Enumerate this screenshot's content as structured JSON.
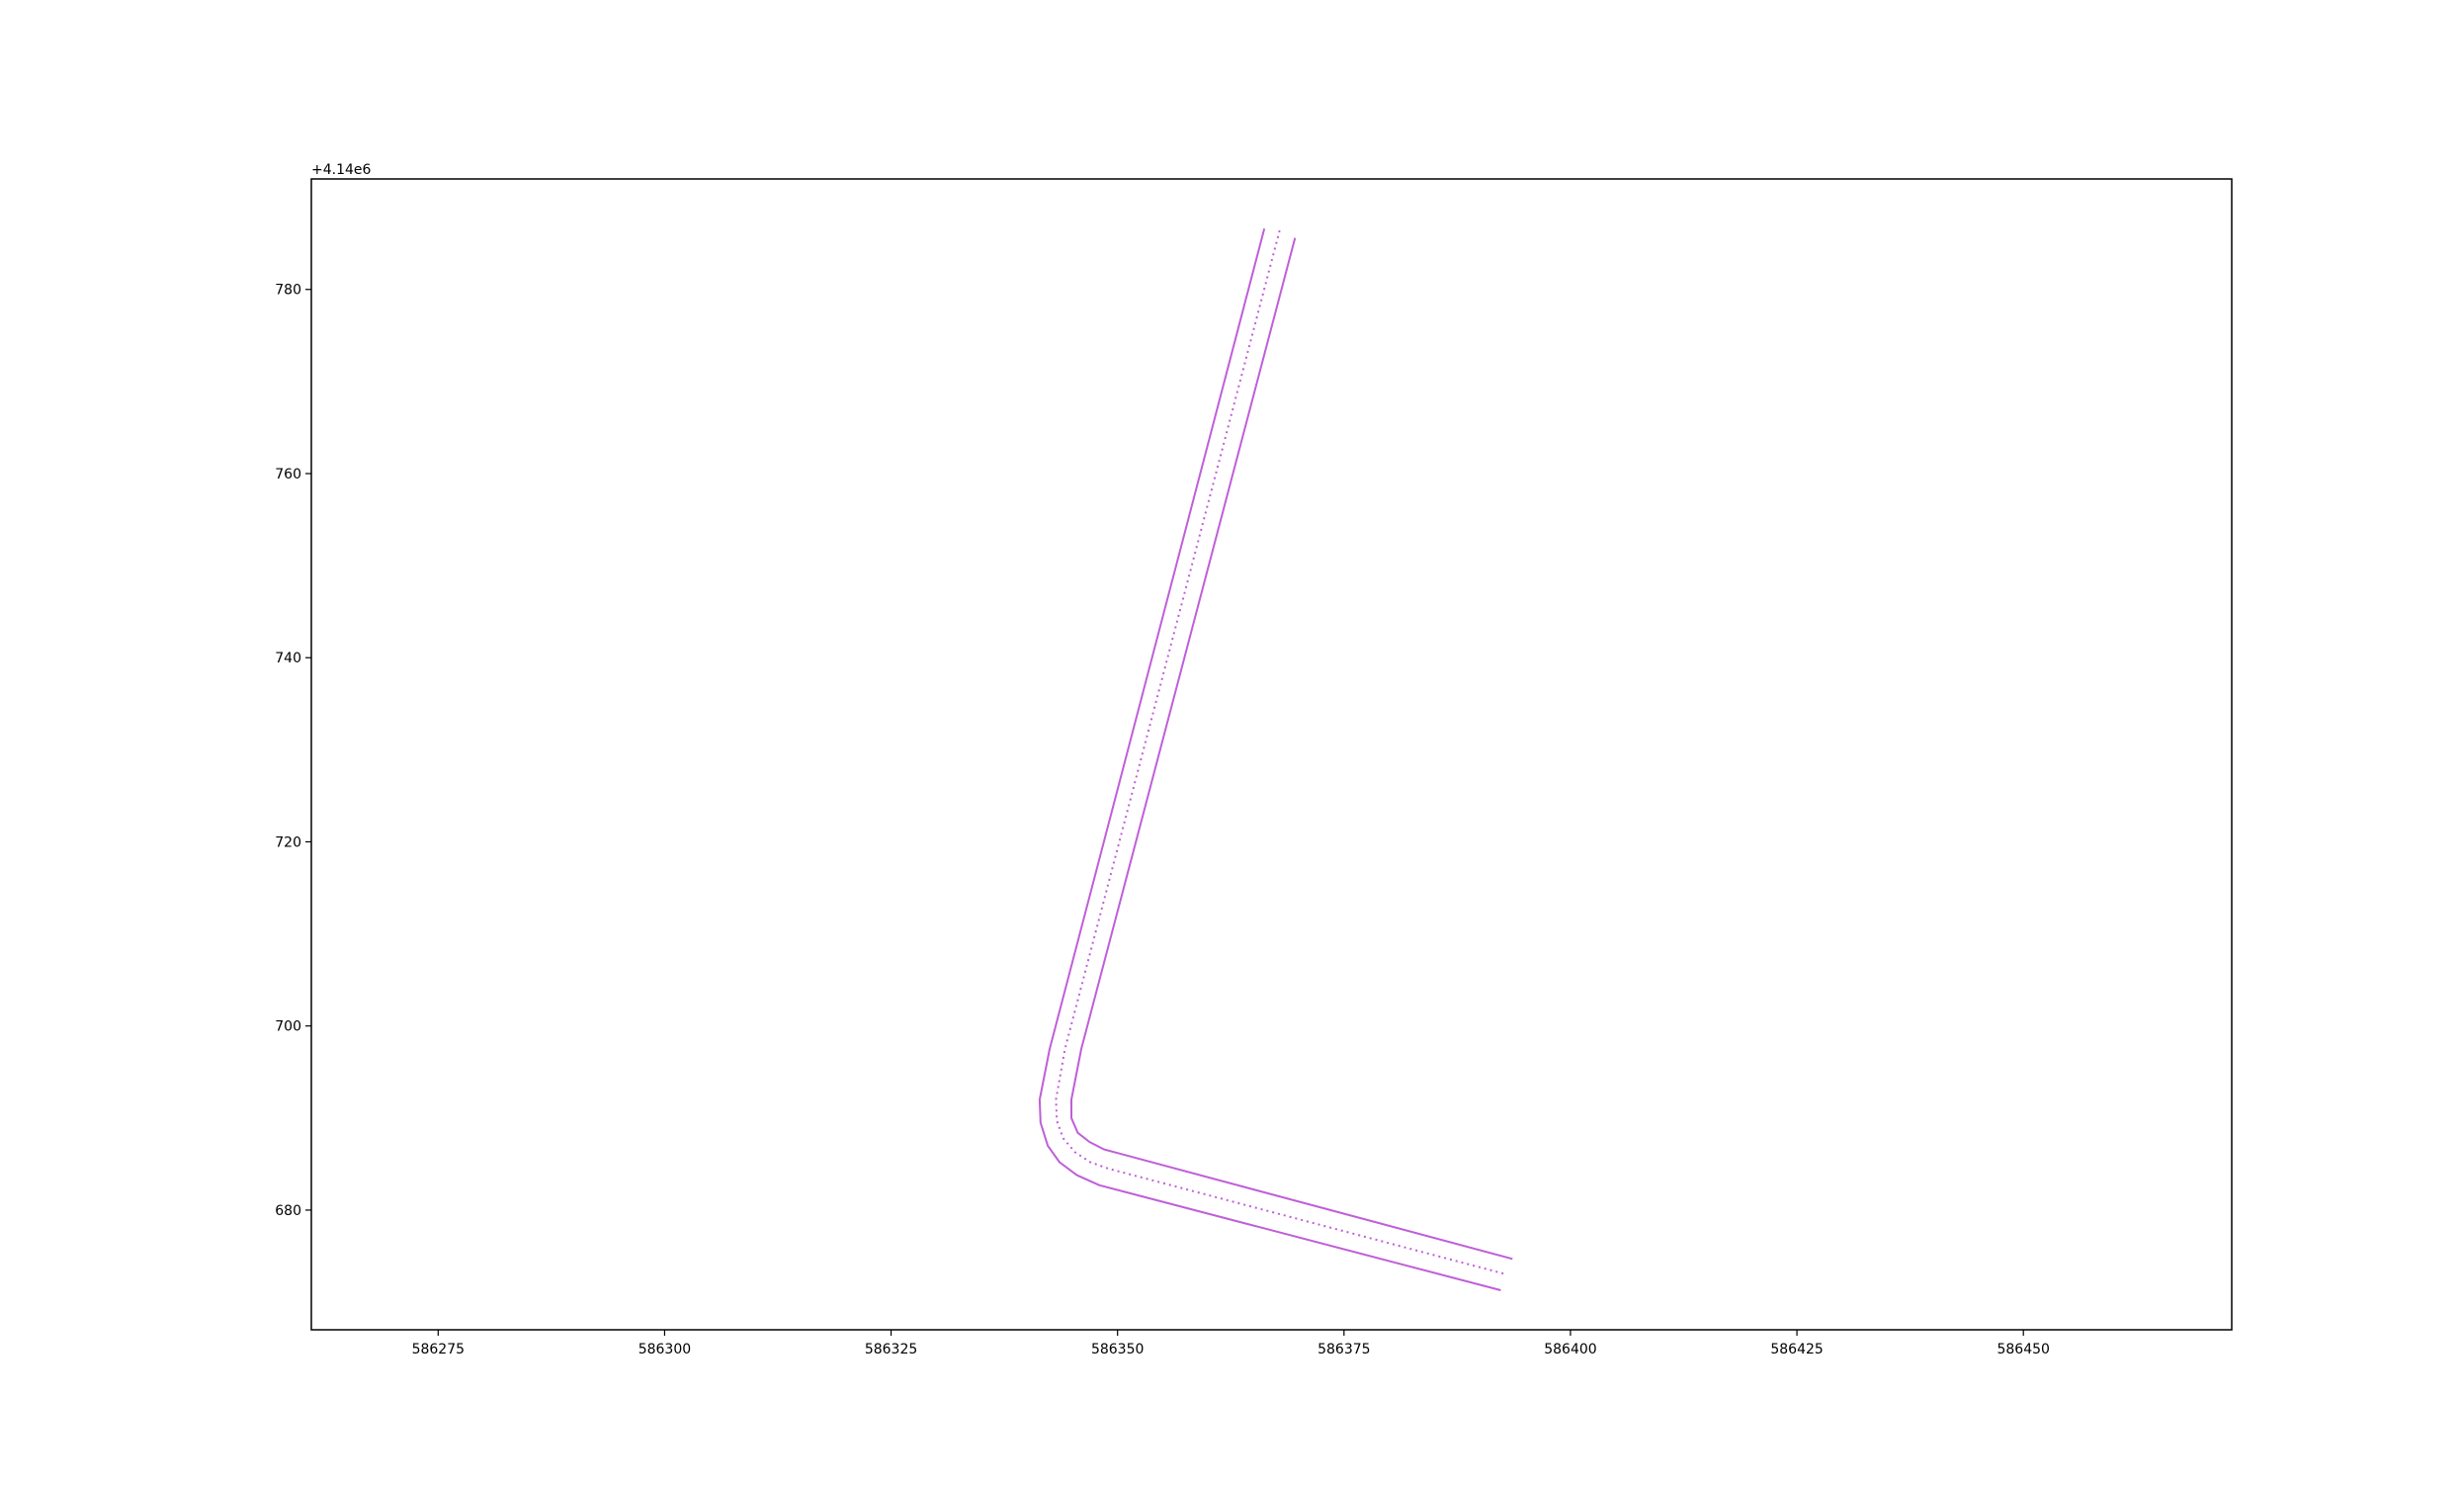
{
  "chart_data": {
    "type": "line",
    "title": "",
    "xlabel": "",
    "ylabel": "",
    "y_offset_label": "+4.14e6",
    "xlim": [
      586261,
      586473
    ],
    "ylim": [
      667,
      792
    ],
    "xticks": [
      586275,
      586300,
      586325,
      586350,
      586375,
      586400,
      586425,
      586450
    ],
    "xtick_labels": [
      "586275",
      "586300",
      "586325",
      "586350",
      "586375",
      "586400",
      "586425",
      "586450"
    ],
    "yticks": [
      680,
      700,
      720,
      740,
      760,
      780
    ],
    "ytick_labels": [
      "680",
      "700",
      "720",
      "740",
      "760",
      "780"
    ],
    "grid": false,
    "series": [
      {
        "style": "solid",
        "color": "#bf5fd8",
        "points": [
          [
            586366.2,
            786.6
          ],
          [
            586342.5,
            697.5
          ],
          [
            586341.4,
            692.0
          ],
          [
            586341.5,
            689.5
          ],
          [
            586342.3,
            687.0
          ],
          [
            586343.6,
            685.2
          ],
          [
            586345.5,
            683.8
          ],
          [
            586348.0,
            682.7
          ],
          [
            586392.3,
            671.3
          ]
        ]
      },
      {
        "style": "dotted",
        "color": "#bf5fd8",
        "points": [
          [
            586367.9,
            786.4
          ],
          [
            586344.2,
            697.5
          ],
          [
            586343.2,
            692.0
          ],
          [
            586343.3,
            689.7
          ],
          [
            586344.0,
            687.8
          ],
          [
            586345.3,
            686.3
          ],
          [
            586347.0,
            685.2
          ],
          [
            586349.0,
            684.5
          ],
          [
            586393.0,
            673.0
          ]
        ]
      },
      {
        "style": "solid",
        "color": "#bf5fd8",
        "points": [
          [
            586369.6,
            785.6
          ],
          [
            586346.0,
            697.5
          ],
          [
            586344.9,
            692.0
          ],
          [
            586344.9,
            690.0
          ],
          [
            586345.6,
            688.4
          ],
          [
            586346.9,
            687.4
          ],
          [
            586348.5,
            686.6
          ],
          [
            586350.0,
            686.2
          ],
          [
            586393.6,
            674.7
          ]
        ]
      }
    ]
  }
}
